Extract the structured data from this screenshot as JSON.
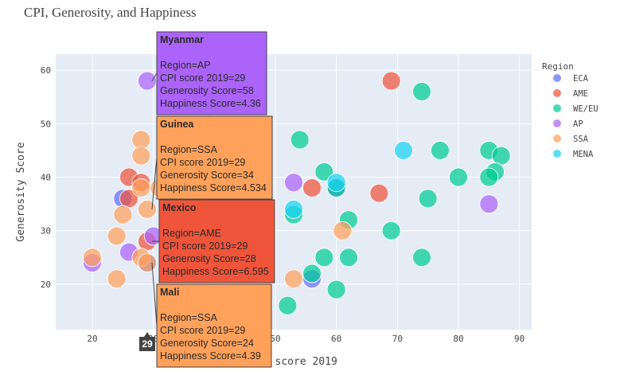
{
  "chart_data": {
    "type": "scatter",
    "title": "CPI, Generosity, and Happiness",
    "xlabel": "CPI score 2019",
    "ylabel": "Generosity Score",
    "xlim": [
      14,
      92
    ],
    "ylim": [
      11.5,
      63
    ],
    "x_ticks": [
      20,
      30,
      40,
      50,
      60,
      70,
      80,
      90
    ],
    "y_ticks": [
      20,
      30,
      40,
      50,
      60
    ],
    "grid": true,
    "legend_title": "Region",
    "legend_position": "right",
    "series": [
      {
        "name": "ECA",
        "color": "#636efa",
        "points": [
          [
            25,
            36
          ],
          [
            56,
            21
          ],
          [
            29,
            24
          ],
          [
            60,
            38
          ]
        ]
      },
      {
        "name": "AME",
        "color": "#ef553b",
        "points": [
          [
            69,
            58
          ],
          [
            26,
            40
          ],
          [
            28,
            39
          ],
          [
            56,
            38
          ],
          [
            67,
            37
          ],
          [
            26,
            36
          ],
          [
            29,
            28
          ]
        ]
      },
      {
        "name": "WE/EU",
        "color": "#00cc96",
        "points": [
          [
            74,
            56
          ],
          [
            54,
            47
          ],
          [
            77,
            45
          ],
          [
            85,
            45
          ],
          [
            87,
            44
          ],
          [
            58,
            41
          ],
          [
            86,
            41
          ],
          [
            80,
            40
          ],
          [
            85,
            40
          ],
          [
            60,
            38
          ],
          [
            75,
            36
          ],
          [
            53,
            33
          ],
          [
            62,
            32
          ],
          [
            69,
            30
          ],
          [
            58,
            25
          ],
          [
            62,
            25
          ],
          [
            74,
            25
          ],
          [
            56,
            22
          ],
          [
            60,
            19
          ],
          [
            52,
            16
          ]
        ]
      },
      {
        "name": "AP",
        "color": "#ab63fa",
        "points": [
          [
            29,
            58
          ],
          [
            53,
            39
          ],
          [
            85,
            35
          ],
          [
            20,
            24
          ],
          [
            26,
            26
          ],
          [
            30,
            29
          ]
        ]
      },
      {
        "name": "SSA",
        "color": "#ffa15a",
        "points": [
          [
            28,
            47
          ],
          [
            28,
            44
          ],
          [
            28,
            38
          ],
          [
            29,
            34
          ],
          [
            25,
            33
          ],
          [
            31,
            38
          ],
          [
            24,
            29
          ],
          [
            20,
            25
          ],
          [
            28,
            25
          ],
          [
            29,
            24
          ],
          [
            24,
            21
          ],
          [
            53,
            21
          ],
          [
            61,
            30
          ]
        ]
      },
      {
        "name": "MENA",
        "color": "#19d3f3",
        "points": [
          [
            71,
            45
          ],
          [
            60,
            39
          ],
          [
            53,
            34
          ]
        ]
      }
    ],
    "hover": {
      "x_spike_label": "29",
      "tooltips": [
        {
          "country": "Myanmar",
          "color": "#ab63fa",
          "x": 29,
          "y": 58,
          "lines": [
            "Region=AP",
            "CPI score 2019=29",
            "Generosity Score=58",
            "Happiness Score=4.36"
          ]
        },
        {
          "country": "Guinea",
          "color": "#ffa15a",
          "x": 29,
          "y": 34,
          "lines": [
            "Region=SSA",
            "CPI score 2019=29",
            "Generosity Score=34",
            "Happiness Score=4.534"
          ]
        },
        {
          "country": "Mexico",
          "color": "#ef553b",
          "x": 29,
          "y": 28,
          "lines": [
            "Region=AME",
            "CPI score 2019=29",
            "Generosity Score=28",
            "Happiness Score=6.595"
          ]
        },
        {
          "country": "Mali",
          "color": "#ffa15a",
          "x": 29,
          "y": 24,
          "lines": [
            "Region=SSA",
            "CPI score 2019=29",
            "Generosity Score=24",
            "Happiness Score=4.39"
          ]
        }
      ]
    }
  }
}
